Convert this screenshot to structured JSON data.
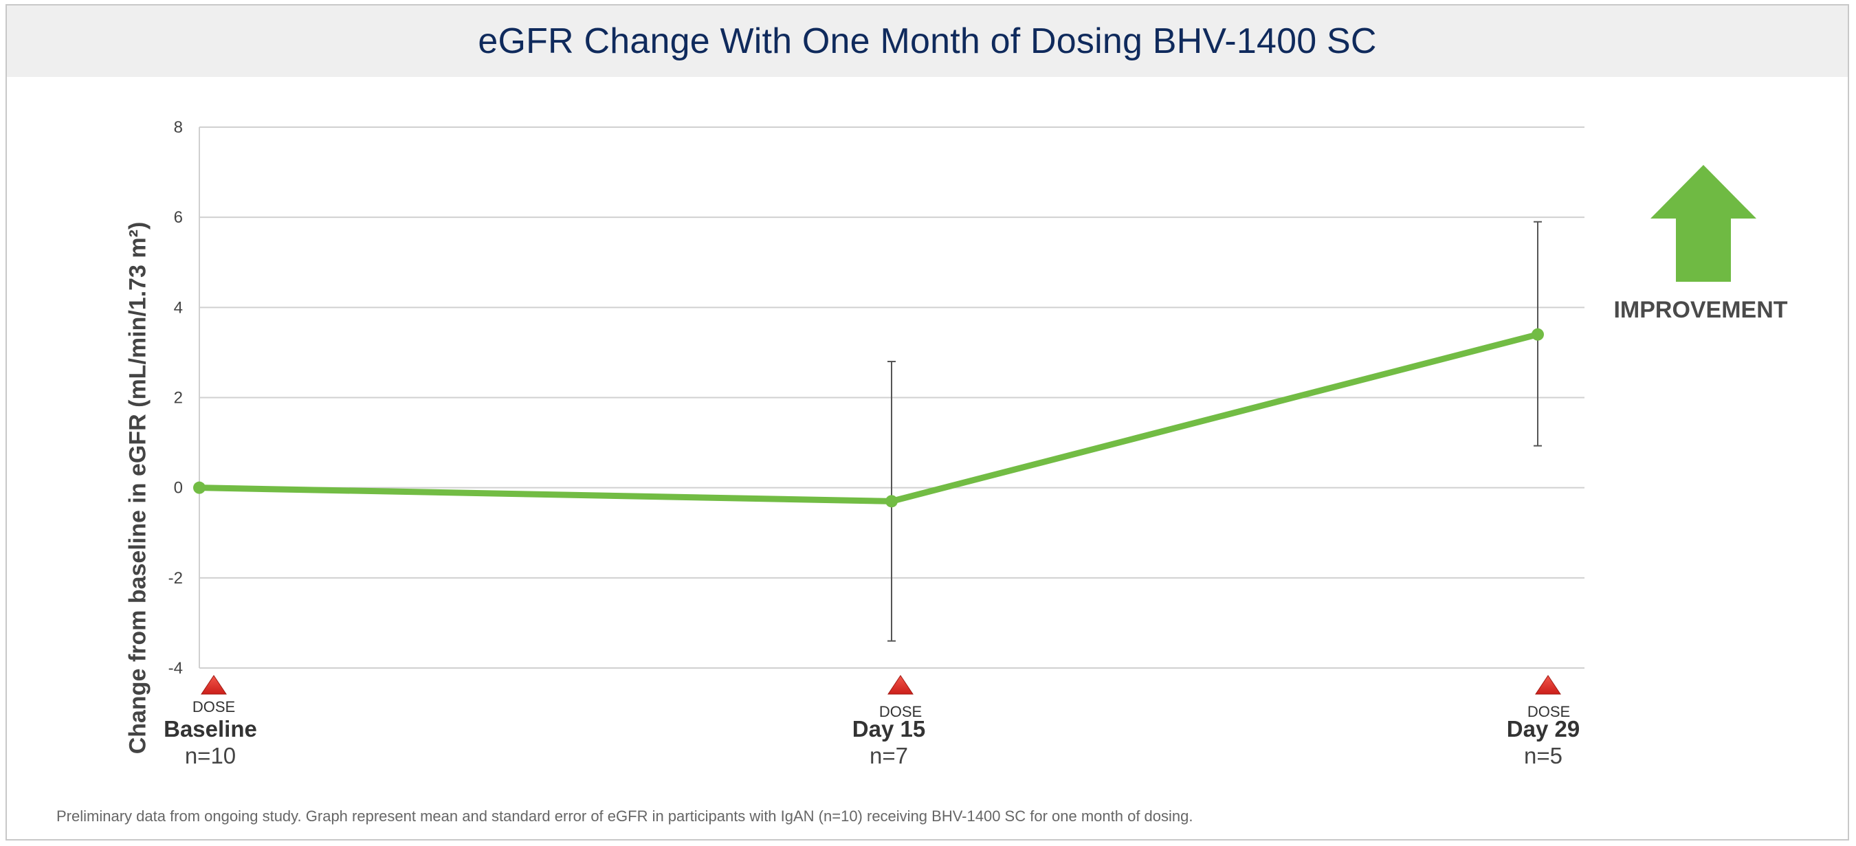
{
  "title": "eGFR Change With One Month of Dosing BHV-1400 SC",
  "footnote": "Preliminary data from ongoing study. Graph represent mean and standard error of eGFR in participants with IgAN (n=10) receiving BHV-1400 SC for one month of dosing.",
  "improvement_label": "IMPROVEMENT",
  "dose_label": "DOSE",
  "colors": {
    "series": "#72bc44",
    "arrow": "#6fba43",
    "dose_marker": "#cc1f1a",
    "error_bar": "#555555",
    "grid": "#d0d0d0"
  },
  "chart_data": {
    "type": "line",
    "ylabel": "Change from baseline in eGFR (mL/min/1.73 m²)",
    "ylim": [
      -4,
      8
    ],
    "yticks": [
      -4,
      -2,
      0,
      2,
      4,
      6,
      8
    ],
    "grid": true,
    "x": [
      1,
      15,
      29
    ],
    "categories": [
      "Baseline",
      "Day 15",
      "Day 29"
    ],
    "sample_sizes": [
      "n=10",
      "n=7",
      "n=5"
    ],
    "series": [
      {
        "values": [
          0,
          -0.3,
          3.4
        ],
        "error_low": [
          0,
          -3.4,
          0.93
        ],
        "error_high": [
          0,
          2.8,
          5.9
        ]
      }
    ],
    "dose_markers": [
      1,
      15,
      29
    ]
  }
}
